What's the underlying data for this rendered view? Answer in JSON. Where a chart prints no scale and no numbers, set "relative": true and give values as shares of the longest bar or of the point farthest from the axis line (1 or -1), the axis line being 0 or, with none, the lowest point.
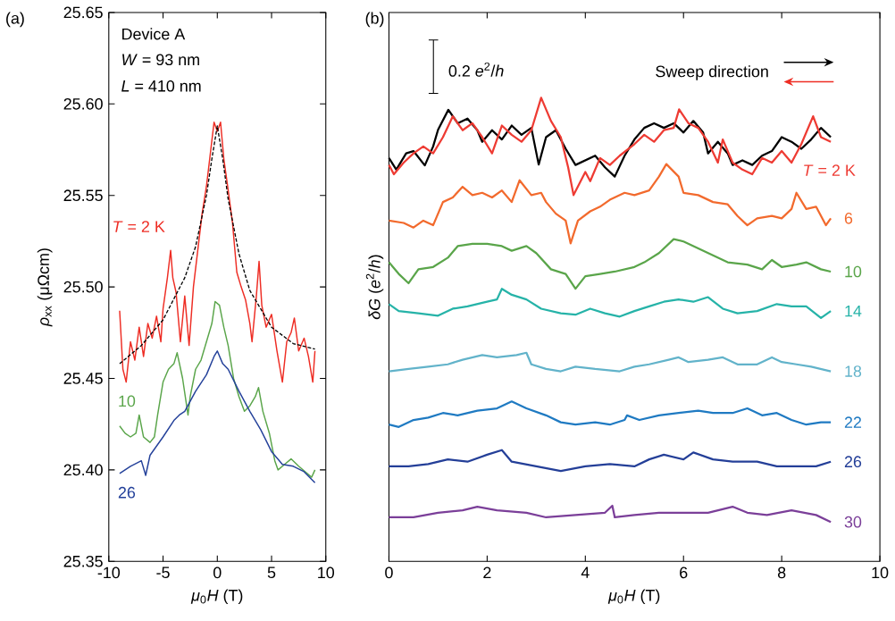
{
  "chart_data": [
    {
      "type": "line",
      "title": "(a)",
      "xlabel": "*μ*$_{0}$*H* (T)",
      "ylabel": "*ρ*$_{xx}$ (μΩcm)",
      "xlim": [
        -10,
        10
      ],
      "xticks": [
        -10,
        -5,
        0,
        5,
        10
      ],
      "ylim": [
        25.35,
        25.65
      ],
      "yticks": [
        25.35,
        {
          "value": 25.4,
          "label": "25.40"
        },
        25.45,
        {
          "value": 25.5,
          "label": "25.50"
        },
        25.55,
        {
          "value": 25.6,
          "label": "25.60"
        },
        25.65
      ],
      "annotations": [
        "Device A",
        "*W* = 93 nm",
        "*L* = 410 nm"
      ],
      "series": [
        {
          "name": "*T* = 2 K",
          "color": "#ee2d24",
          "x": [
            -9.0,
            -8.7,
            -8.4,
            -8.0,
            -7.6,
            -7.2,
            -6.8,
            -6.4,
            -6.0,
            -5.6,
            -5.2,
            -5.0,
            -4.6,
            -4.3,
            -4.1,
            -3.8,
            -3.4,
            -3.0,
            -2.6,
            -2.2,
            -1.8,
            -1.4,
            -1.0,
            -0.6,
            -0.3,
            0.0,
            0.3,
            0.6,
            1.0,
            1.4,
            1.8,
            2.2,
            2.6,
            3.0,
            3.2,
            3.6,
            3.85,
            4.1,
            4.5,
            5.0,
            5.5,
            6.0,
            6.4,
            6.8,
            7.1,
            7.5,
            8.0,
            8.4,
            8.8,
            9.0
          ],
          "values": [
            25.487,
            25.455,
            25.448,
            25.47,
            25.46,
            25.478,
            25.462,
            25.48,
            25.472,
            25.484,
            25.47,
            25.488,
            25.505,
            25.52,
            25.505,
            25.497,
            25.47,
            25.495,
            25.468,
            25.5,
            25.52,
            25.54,
            25.555,
            25.575,
            25.59,
            25.585,
            25.59,
            25.57,
            25.553,
            25.535,
            25.508,
            25.5,
            25.493,
            25.48,
            25.47,
            25.495,
            25.514,
            25.49,
            25.478,
            25.485,
            25.465,
            25.448,
            25.47,
            25.475,
            25.483,
            25.465,
            25.472,
            25.462,
            25.448,
            25.465
          ]
        },
        {
          "name": "10",
          "color": "#5aa54a",
          "x": [
            -9,
            -8.5,
            -8,
            -7.5,
            -7.2,
            -6.8,
            -6.2,
            -5.8,
            -5.5,
            -5,
            -4.5,
            -4,
            -3.7,
            -3.2,
            -2.7,
            -2.5,
            -2,
            -1.5,
            -1,
            -0.5,
            -0.2,
            0.2,
            0.6,
            1,
            1.5,
            2,
            2.5,
            3,
            3.5,
            3.8,
            4.2,
            4.8,
            5.3,
            5.6,
            6.2,
            6.8,
            7.5,
            8.3,
            8.7,
            9
          ],
          "values": [
            25.424,
            25.42,
            25.418,
            25.42,
            25.43,
            25.418,
            25.415,
            25.418,
            25.43,
            25.448,
            25.455,
            25.458,
            25.464,
            25.45,
            25.43,
            25.44,
            25.455,
            25.46,
            25.47,
            25.48,
            25.492,
            25.49,
            25.478,
            25.468,
            25.45,
            25.44,
            25.432,
            25.435,
            25.44,
            25.445,
            25.432,
            25.42,
            25.405,
            25.4,
            25.403,
            25.406,
            25.402,
            25.398,
            25.396,
            25.4
          ]
        },
        {
          "name": "26",
          "color": "#24419a",
          "x": [
            -9,
            -8,
            -7,
            -6.6,
            -6.2,
            -5,
            -4,
            -3.5,
            -3,
            -2,
            -1,
            -0.3,
            0,
            0.5,
            1,
            2,
            3,
            4,
            5,
            6,
            7,
            8,
            9
          ],
          "values": [
            25.398,
            25.402,
            25.405,
            25.397,
            25.408,
            25.418,
            25.427,
            25.43,
            25.432,
            25.443,
            25.452,
            25.462,
            25.465,
            25.458,
            25.455,
            25.443,
            25.432,
            25.422,
            25.41,
            25.403,
            25.402,
            25.399,
            25.393
          ]
        },
        {
          "type": "line",
          "line_style": "dashed",
          "color": "#000000",
          "x": [
            -9,
            -7,
            -5,
            -3,
            -2,
            -1,
            -0.5,
            0,
            0.5,
            1,
            2,
            3,
            5,
            7,
            9
          ],
          "values": [
            25.458,
            25.468,
            25.482,
            25.505,
            25.522,
            25.55,
            25.57,
            25.588,
            25.57,
            25.548,
            25.518,
            25.498,
            25.478,
            25.469,
            25.466
          ]
        }
      ]
    },
    {
      "type": "line",
      "title": "(b)",
      "xlabel": "*μ*$_{0}$*H* (T)",
      "ylabel": "*δG* (*e*$^{2}$/*h*)",
      "relative": true,
      "xlim": [
        0,
        10
      ],
      "xticks": [
        0,
        2,
        4,
        6,
        8,
        10
      ],
      "annotations": [
        "0.2 *e*$^{2}$/*h*",
        "Sweep direction"
      ],
      "series": [
        {
          "color": "#000000",
          "x": [
            0,
            0.15,
            0.35,
            0.5,
            0.73,
            0.9,
            1.0,
            1.21,
            1.4,
            1.6,
            1.8,
            1.9,
            2.1,
            2.3,
            2.5,
            2.7,
            2.9,
            3.05,
            3.2,
            3.4,
            3.6,
            3.8,
            4.0,
            4.2,
            4.4,
            4.6,
            4.8,
            5.0,
            5.2,
            5.4,
            5.6,
            5.8,
            6.0,
            6.2,
            6.4,
            6.5,
            6.7,
            6.9,
            7.0,
            7.2,
            7.4,
            7.6,
            7.8,
            8.0,
            8.2,
            8.4,
            8.6,
            8.8,
            9.0
          ],
          "values": [
            0.87,
            0.845,
            0.88,
            0.885,
            0.854,
            0.895,
            0.931,
            0.974,
            0.945,
            0.955,
            0.93,
            0.905,
            0.93,
            0.91,
            0.94,
            0.92,
            0.935,
            0.856,
            0.915,
            0.93,
            0.89,
            0.855,
            0.865,
            0.875,
            0.85,
            0.83,
            0.875,
            0.91,
            0.935,
            0.945,
            0.935,
            0.945,
            0.925,
            0.95,
            0.925,
            0.88,
            0.905,
            0.88,
            0.855,
            0.865,
            0.855,
            0.875,
            0.885,
            0.915,
            0.905,
            0.89,
            0.91,
            0.935,
            0.915
          ]
        },
        {
          "name": "*T* = 2 K",
          "color": "#ee3b33",
          "x": [
            0,
            0.1,
            0.3,
            0.5,
            0.7,
            0.9,
            1.1,
            1.3,
            1.5,
            1.7,
            1.9,
            2.1,
            2.3,
            2.5,
            2.7,
            2.9,
            3.1,
            3.3,
            3.5,
            3.65,
            3.76,
            4.0,
            4.1,
            4.3,
            4.5,
            4.7,
            5.0,
            5.2,
            5.4,
            5.6,
            5.8,
            5.91,
            6.1,
            6.3,
            6.5,
            6.7,
            6.8,
            7.0,
            7.2,
            7.4,
            7.6,
            7.8,
            8.0,
            8.2,
            8.4,
            8.64,
            8.8,
            9.0
          ],
          "values": [
            0.855,
            0.835,
            0.86,
            0.88,
            0.895,
            0.88,
            0.915,
            0.96,
            0.93,
            0.945,
            0.915,
            0.88,
            0.94,
            0.92,
            0.905,
            0.93,
            1.0,
            0.95,
            0.915,
            0.85,
            0.79,
            0.84,
            0.82,
            0.87,
            0.855,
            0.875,
            0.9,
            0.92,
            0.905,
            0.93,
            0.935,
            0.975,
            0.945,
            0.935,
            0.905,
            0.86,
            0.91,
            0.86,
            0.845,
            0.835,
            0.87,
            0.86,
            0.885,
            0.86,
            0.9,
            0.96,
            0.915,
            0.905
          ]
        },
        {
          "name": "6",
          "color": "#f26a2d",
          "x": [
            0,
            0.3,
            0.5,
            0.7,
            0.9,
            1.1,
            1.3,
            1.5,
            1.7,
            1.9,
            2.1,
            2.3,
            2.5,
            2.66,
            2.9,
            3.1,
            3.2,
            3.4,
            3.6,
            3.7,
            3.85,
            4.1,
            4.3,
            4.5,
            4.8,
            5.0,
            5.3,
            5.5,
            5.65,
            5.9,
            6.0,
            6.3,
            6.6,
            6.9,
            7.1,
            7.3,
            7.5,
            7.8,
            8.0,
            8.2,
            8.3,
            8.5,
            8.7,
            8.9,
            9.0
          ],
          "values": [
            0.735,
            0.73,
            0.72,
            0.735,
            0.725,
            0.775,
            0.785,
            0.808,
            0.79,
            0.795,
            0.785,
            0.8,
            0.775,
            0.822,
            0.79,
            0.795,
            0.775,
            0.75,
            0.735,
            0.686,
            0.735,
            0.755,
            0.765,
            0.78,
            0.795,
            0.79,
            0.8,
            0.83,
            0.857,
            0.83,
            0.795,
            0.79,
            0.775,
            0.77,
            0.745,
            0.725,
            0.74,
            0.745,
            0.74,
            0.76,
            0.795,
            0.76,
            0.765,
            0.725,
            0.74
          ]
        },
        {
          "name": "10",
          "color": "#5aa54a",
          "x": [
            0,
            0.2,
            0.4,
            0.6,
            0.9,
            1.2,
            1.4,
            1.7,
            2.0,
            2.3,
            2.5,
            2.8,
            3.0,
            3.3,
            3.6,
            3.8,
            4.0,
            4.3,
            4.6,
            5.0,
            5.2,
            5.5,
            5.8,
            6.0,
            6.3,
            6.6,
            6.9,
            7.3,
            7.6,
            7.8,
            8.0,
            8.3,
            8.5,
            8.8,
            9.0
          ],
          "values": [
            0.645,
            0.62,
            0.6,
            0.63,
            0.635,
            0.655,
            0.68,
            0.685,
            0.685,
            0.68,
            0.67,
            0.68,
            0.665,
            0.63,
            0.62,
            0.588,
            0.615,
            0.62,
            0.625,
            0.635,
            0.645,
            0.665,
            0.695,
            0.69,
            0.675,
            0.66,
            0.645,
            0.64,
            0.63,
            0.65,
            0.635,
            0.64,
            0.645,
            0.63,
            0.625
          ]
        },
        {
          "name": "14",
          "color": "#26b3a8",
          "x": [
            0,
            0.2,
            0.6,
            1.0,
            1.3,
            1.6,
            2.0,
            2.2,
            2.3,
            2.5,
            2.8,
            3.1,
            3.5,
            3.8,
            4.1,
            4.4,
            4.7,
            5.0,
            5.3,
            5.6,
            5.9,
            6.2,
            6.5,
            6.8,
            7.1,
            7.5,
            7.9,
            8.2,
            8.5,
            8.8,
            9.0
          ],
          "values": [
            0.555,
            0.54,
            0.535,
            0.53,
            0.545,
            0.55,
            0.56,
            0.565,
            0.588,
            0.575,
            0.565,
            0.545,
            0.535,
            0.532,
            0.545,
            0.535,
            0.528,
            0.54,
            0.55,
            0.56,
            0.565,
            0.56,
            0.57,
            0.545,
            0.535,
            0.54,
            0.555,
            0.55,
            0.55,
            0.525,
            0.54
          ]
        },
        {
          "name": "18",
          "color": "#62b3ca",
          "x": [
            0,
            0.4,
            0.8,
            1.2,
            1.5,
            1.9,
            2.2,
            2.6,
            2.8,
            2.9,
            3.2,
            3.5,
            3.8,
            4.2,
            4.7,
            5.0,
            5.3,
            5.7,
            5.9,
            6.1,
            6.5,
            6.8,
            7.1,
            7.5,
            7.8,
            8.0,
            8.3,
            8.6,
            9.0
          ],
          "values": [
            0.41,
            0.415,
            0.42,
            0.425,
            0.435,
            0.445,
            0.44,
            0.445,
            0.45,
            0.425,
            0.415,
            0.41,
            0.42,
            0.415,
            0.41,
            0.42,
            0.425,
            0.435,
            0.44,
            0.43,
            0.435,
            0.44,
            0.425,
            0.425,
            0.44,
            0.43,
            0.425,
            0.42,
            0.41
          ]
        },
        {
          "name": "22",
          "color": "#1f7ac2",
          "x": [
            0,
            0.2,
            0.5,
            0.8,
            1.1,
            1.4,
            1.8,
            2.2,
            2.5,
            2.8,
            3.2,
            3.5,
            3.8,
            4.2,
            4.5,
            4.8,
            4.85,
            5.1,
            5.5,
            5.9,
            6.3,
            6.6,
            7.0,
            7.3,
            7.6,
            7.9,
            8.2,
            8.5,
            8.8,
            9.0
          ],
          "values": [
            0.295,
            0.29,
            0.305,
            0.31,
            0.32,
            0.315,
            0.325,
            0.33,
            0.345,
            0.33,
            0.315,
            0.3,
            0.295,
            0.3,
            0.295,
            0.305,
            0.315,
            0.305,
            0.315,
            0.32,
            0.325,
            0.32,
            0.32,
            0.33,
            0.315,
            0.32,
            0.305,
            0.295,
            0.3,
            0.3
          ]
        },
        {
          "name": "26",
          "color": "#243f98",
          "x": [
            0,
            0.4,
            0.8,
            1.2,
            1.6,
            2.0,
            2.3,
            2.5,
            3.0,
            3.5,
            4.0,
            4.5,
            5.0,
            5.3,
            5.6,
            6.0,
            6.2,
            6.6,
            7.0,
            7.5,
            7.9,
            8.3,
            8.7,
            9.0
          ],
          "values": [
            0.205,
            0.205,
            0.21,
            0.22,
            0.215,
            0.23,
            0.24,
            0.215,
            0.205,
            0.195,
            0.205,
            0.21,
            0.205,
            0.22,
            0.23,
            0.22,
            0.235,
            0.22,
            0.215,
            0.215,
            0.205,
            0.205,
            0.205,
            0.215
          ]
        },
        {
          "name": "30",
          "color": "#7b3f99",
          "x": [
            0,
            0.5,
            1.0,
            1.5,
            1.8,
            2.2,
            2.8,
            3.2,
            3.8,
            4.4,
            4.55,
            4.6,
            5.0,
            5.5,
            6.0,
            6.5,
            7.0,
            7.3,
            7.7,
            8.2,
            8.7,
            9.0
          ],
          "values": [
            0.095,
            0.095,
            0.105,
            0.11,
            0.118,
            0.11,
            0.105,
            0.095,
            0.1,
            0.105,
            0.12,
            0.095,
            0.1,
            0.105,
            0.105,
            0.105,
            0.118,
            0.105,
            0.1,
            0.11,
            0.1,
            0.085
          ]
        }
      ]
    }
  ]
}
